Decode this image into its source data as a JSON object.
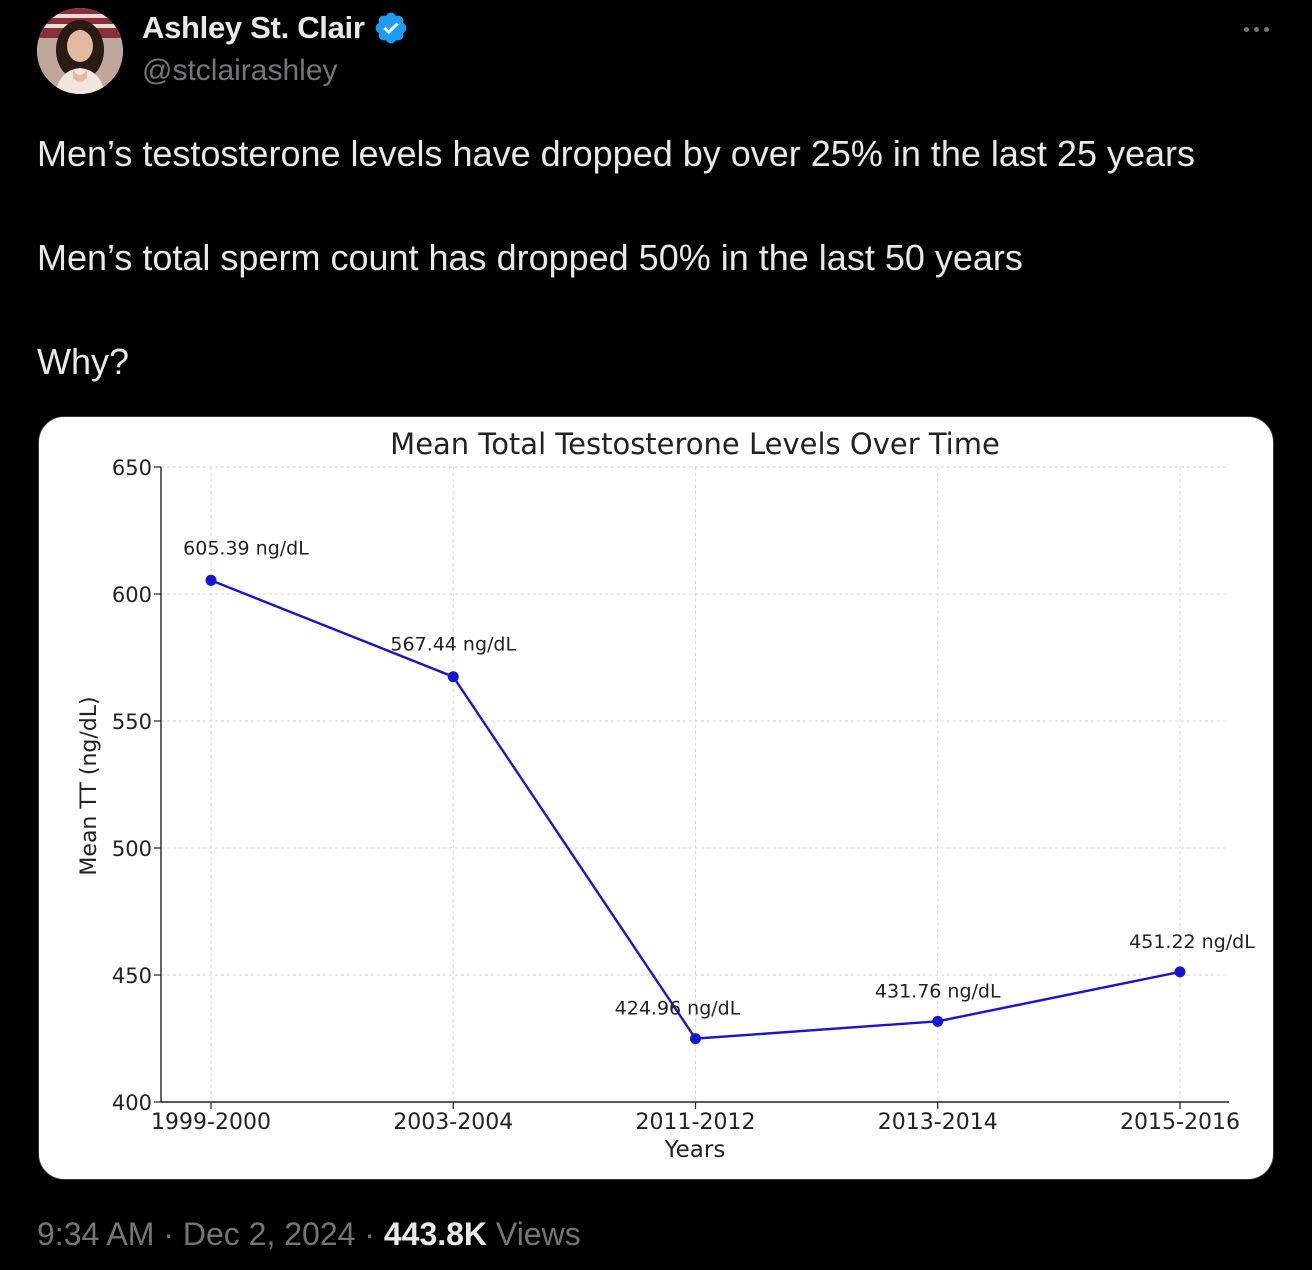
{
  "author": {
    "display_name": "Ashley St. Clair",
    "handle": "@stclairashley",
    "verified_icon": "verified-badge-icon",
    "verified_color": "#1d9bf0"
  },
  "tweet": {
    "lines": [
      "Men’s testosterone levels have dropped by over 25% in the last 25 years",
      "Men’s total sperm count has dropped 50% in the last 50 years",
      "Why?"
    ]
  },
  "footer": {
    "time": "9:34 AM",
    "separator": "·",
    "date": "Dec 2, 2024",
    "views_count": "443.8K",
    "views_label": "Views"
  },
  "chart_data": {
    "type": "line",
    "title": "Mean Total Testosterone Levels Over Time",
    "xlabel": "Years",
    "ylabel": "Mean TT (ng/dL)",
    "categories": [
      "1999-2000",
      "2003-2004",
      "2011-2012",
      "2013-2014",
      "2015-2016"
    ],
    "values": [
      605.39,
      567.44,
      424.96,
      431.76,
      451.22
    ],
    "data_labels": [
      "605.39 ng/dL",
      "567.44 ng/dL",
      "424.96 ng/dL",
      "431.76 ng/dL",
      "451.22 ng/dL"
    ],
    "ylim": [
      400,
      650
    ],
    "yticks": [
      400,
      450,
      500,
      550,
      600,
      650
    ],
    "grid": true,
    "line_color": "#1515d4"
  }
}
